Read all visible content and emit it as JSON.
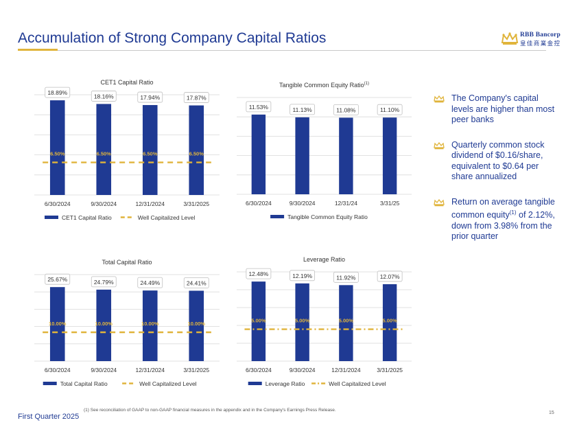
{
  "title": "Accumulation of Strong Company Capital Ratios",
  "logo": {
    "line1": "RBB Bancorp",
    "line2": "皇佳商業金控"
  },
  "colors": {
    "bar": "#1f3a93",
    "dashed": "#e0b43b",
    "title": "#1f3a93"
  },
  "bullets": [
    {
      "text_pre": "The Company's capital levels are higher than most peer banks",
      "sup": "",
      "text_post": ""
    },
    {
      "text_pre": "Quarterly common stock dividend of $0.16/share, equivalent to $0.64 per share annualized",
      "sup": "",
      "text_post": ""
    },
    {
      "text_pre": "Return on average tangible common equity",
      "sup": "(1)",
      "text_post": " of 2.12%, down from 3.98% from the prior quarter"
    }
  ],
  "footer": {
    "left": "First Quarter 2025",
    "note": "(1)  See reconciliation of GAAP to non-GAAP financial measures in the appendix and in the Company's Earnings Press Release.",
    "page": "15"
  },
  "chart_data": [
    {
      "id": "cet1",
      "type": "bar",
      "title": "CET1 Capital Ratio",
      "title_sup": "",
      "categories": [
        "6/30/2024",
        "9/30/2024",
        "12/31/2024",
        "3/31/2025"
      ],
      "values": [
        18.89,
        18.16,
        17.94,
        17.87
      ],
      "value_labels": [
        "18.89%",
        "18.16%",
        "17.94%",
        "17.87%"
      ],
      "threshold": 6.5,
      "threshold_labels": [
        "6.50%",
        "6.50%",
        "6.50%",
        "6.50%"
      ],
      "threshold_style": "dash",
      "ylim": [
        0,
        20
      ],
      "grid": true,
      "legend": [
        "CET1 Capital Ratio",
        "Well Capitalized Level"
      ],
      "legend_position": "bottom"
    },
    {
      "id": "tce",
      "type": "bar",
      "title": "Tangible Common Equity Ratio",
      "title_sup": "(1)",
      "categories": [
        "6/30/2024",
        "9/30/2024",
        "12/31/24",
        "3/31/25"
      ],
      "values": [
        11.53,
        11.13,
        11.08,
        11.1
      ],
      "value_labels": [
        "11.53%",
        "11.13%",
        "11.08%",
        "11.10%"
      ],
      "threshold": null,
      "threshold_labels": [],
      "ylim": [
        0,
        14
      ],
      "grid": true,
      "legend": [
        "Tangible Common Equity Ratio"
      ],
      "legend_position": "bottom"
    },
    {
      "id": "total",
      "type": "bar",
      "title": "Total Capital Ratio",
      "title_sup": "",
      "categories": [
        "6/30/2024",
        "9/30/2024",
        "12/31/2024",
        "3/31/2025"
      ],
      "values": [
        25.67,
        24.79,
        24.49,
        24.41
      ],
      "value_labels": [
        "25.67%",
        "24.79%",
        "24.49%",
        "24.41%"
      ],
      "threshold": 10.0,
      "threshold_labels": [
        "10.00%",
        "10.00%",
        "10.00%",
        "10.00%"
      ],
      "threshold_style": "dash",
      "ylim": [
        0,
        30
      ],
      "grid": true,
      "legend": [
        "Total Capital Ratio",
        "Well Capitalized Level"
      ],
      "legend_position": "bottom"
    },
    {
      "id": "leverage",
      "type": "bar",
      "title": "Leverage Ratio",
      "title_sup": "",
      "categories": [
        "6/30/2024",
        "9/30/2024",
        "12/31/2024",
        "3/31/2025"
      ],
      "values": [
        12.48,
        12.19,
        11.92,
        12.07
      ],
      "value_labels": [
        "12.48%",
        "12.19%",
        "11.92%",
        "12.07%"
      ],
      "threshold": 5.0,
      "threshold_labels": [
        "5.00%",
        "5.00%",
        "5.00%",
        "5.00%"
      ],
      "threshold_style": "dashdot",
      "ylim": [
        0,
        14
      ],
      "grid": true,
      "legend": [
        "Leverage Ratio",
        "Well Capitalized Level"
      ],
      "legend_position": "bottom"
    }
  ]
}
